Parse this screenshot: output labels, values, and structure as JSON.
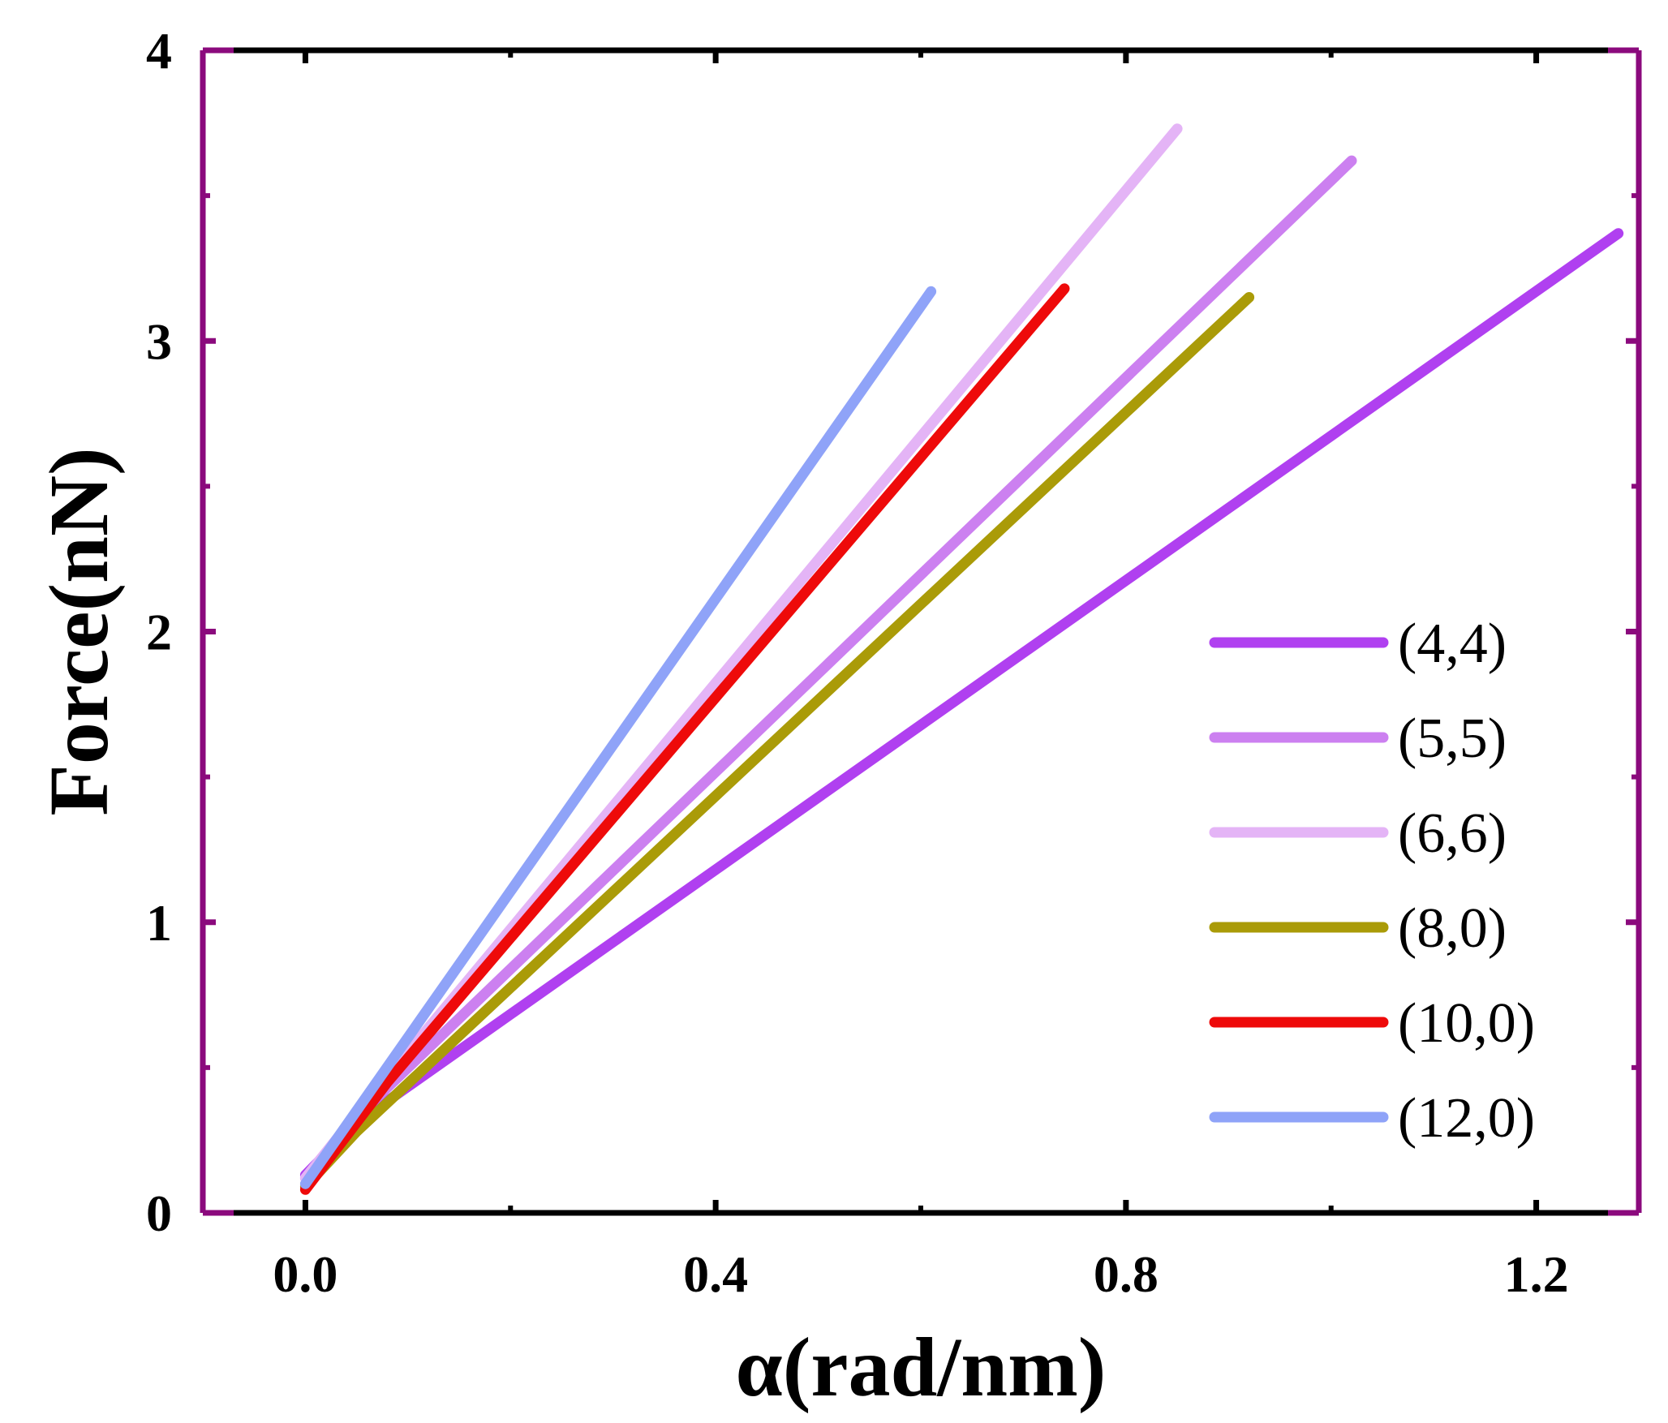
{
  "chart_data": {
    "type": "line",
    "title": "",
    "xlabel": "α(rad/nm)",
    "ylabel": "Force(nN)",
    "xlim": [
      -0.1,
      1.3
    ],
    "ylim": [
      0,
      4
    ],
    "xticks": [
      0.0,
      0.4,
      0.8,
      1.2
    ],
    "xtick_labels": [
      "0.0",
      "0.4",
      "0.8",
      "1.2"
    ],
    "yticks": [
      0,
      1,
      2,
      3,
      4
    ],
    "ytick_labels": [
      "0",
      "1",
      "2",
      "3",
      "4"
    ],
    "grid": false,
    "legend_position": "bottom-right",
    "frame_colors": {
      "top": "#000000",
      "bottom": "#000000",
      "sides": "#8b0a7d"
    },
    "series": [
      {
        "name": "(4,4)",
        "color": "#b040f0",
        "x": [
          0.0,
          0.05,
          1.28
        ],
        "y": [
          0.13,
          0.31,
          3.37
        ]
      },
      {
        "name": "(5,5)",
        "color": "#cc80f0",
        "x": [
          0.0,
          0.05,
          1.02
        ],
        "y": [
          0.12,
          0.33,
          3.62
        ]
      },
      {
        "name": "(6,6)",
        "color": "#e4b4f6",
        "x": [
          0.0,
          0.05,
          0.85
        ],
        "y": [
          0.12,
          0.34,
          3.73
        ]
      },
      {
        "name": "(8,0)",
        "color": "#aa9b08",
        "x": [
          0.0,
          0.05,
          0.92
        ],
        "y": [
          0.09,
          0.28,
          3.15
        ]
      },
      {
        "name": "(10,0)",
        "color": "#ee0a0a",
        "x": [
          0.0,
          0.08,
          0.74
        ],
        "y": [
          0.08,
          0.45,
          3.18
        ]
      },
      {
        "name": "(12,0)",
        "color": "#8fa3f8",
        "x": [
          0.0,
          0.61
        ],
        "y": [
          0.1,
          3.17
        ]
      }
    ]
  }
}
